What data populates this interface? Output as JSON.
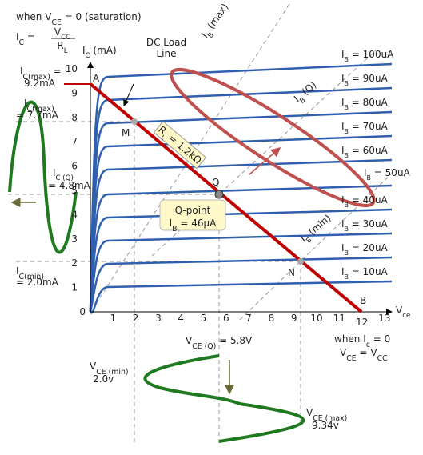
{
  "header": {
    "saturation": {
      "pre": "when V",
      "sub": "CE",
      "post": " = 0  (saturation)"
    },
    "formula": {
      "lhs": "I",
      "lhs_sub": "C",
      "eq": " = ",
      "num": "V",
      "num_sub": "CC",
      "den": "R",
      "den_sub": "L"
    }
  },
  "axes": {
    "y_label": {
      "main": "I",
      "sub": "C",
      "post": " (mA)"
    },
    "x_label": {
      "main": "V",
      "sub": "ce"
    },
    "xticks": [
      1,
      2,
      3,
      4,
      5,
      6,
      7,
      8,
      9,
      10,
      11,
      12,
      13
    ],
    "yticks": [
      0,
      1,
      2,
      3,
      4,
      5,
      6,
      7,
      8,
      9,
      10
    ]
  },
  "curves": {
    "main": "I",
    "sub": "B",
    "labels": [
      " = 100uA",
      " = 90uA",
      " = 80uA",
      " = 70uA",
      " = 60uA",
      " = 50uA",
      " = 40uA",
      " = 30uA",
      " = 20uA",
      " = 10uA"
    ]
  },
  "load_line": {
    "title": [
      "DC Load",
      "Line"
    ],
    "resistance": {
      "main": "R",
      "sub": "L",
      "post": " = 1.2kΩ"
    }
  },
  "points": {
    "a": "A",
    "b": "B",
    "m": "M",
    "q": "Q",
    "n": "N"
  },
  "q_point": {
    "title": "Q-point",
    "main": "I",
    "sub": "B",
    "post": " = 46μA"
  },
  "bias_lines": {
    "max": {
      "main": "I",
      "sub": "B",
      "post": " (max)"
    },
    "q": {
      "main": "I",
      "sub": "B",
      "post": " (Q)"
    },
    "min": {
      "main": "I",
      "sub": "B",
      "post": " (min)"
    }
  },
  "currents": {
    "ic_max": {
      "main": "I",
      "sub": "C(max)",
      "post": " =",
      "value": "9.2mA"
    },
    "ic_max2": {
      "main": "I",
      "sub": "C(max)",
      "value": "= 7.7mA"
    },
    "ic_q": {
      "main": "I",
      "sub": "C (Q)",
      "value": "= 4.8mA"
    },
    "ic_min": {
      "main": "I",
      "sub": "C(min)",
      "value": "= 2.0mA"
    }
  },
  "voltages": {
    "vce_q": {
      "main": "V",
      "sub": "CE (Q)",
      "value": " = 5.8V"
    },
    "vce_min": {
      "main": "V",
      "sub": "CE (min)",
      "value": "2.0v"
    },
    "vce_max": {
      "main": "V",
      "sub": "CE (max)",
      "value": "9.34v"
    }
  },
  "cutoff": {
    "pre": "when I",
    "sub": "c",
    "post": " = 0",
    "v": "V",
    "v_sub": "CE",
    "eq": " = V",
    "cc": "CC"
  }
}
